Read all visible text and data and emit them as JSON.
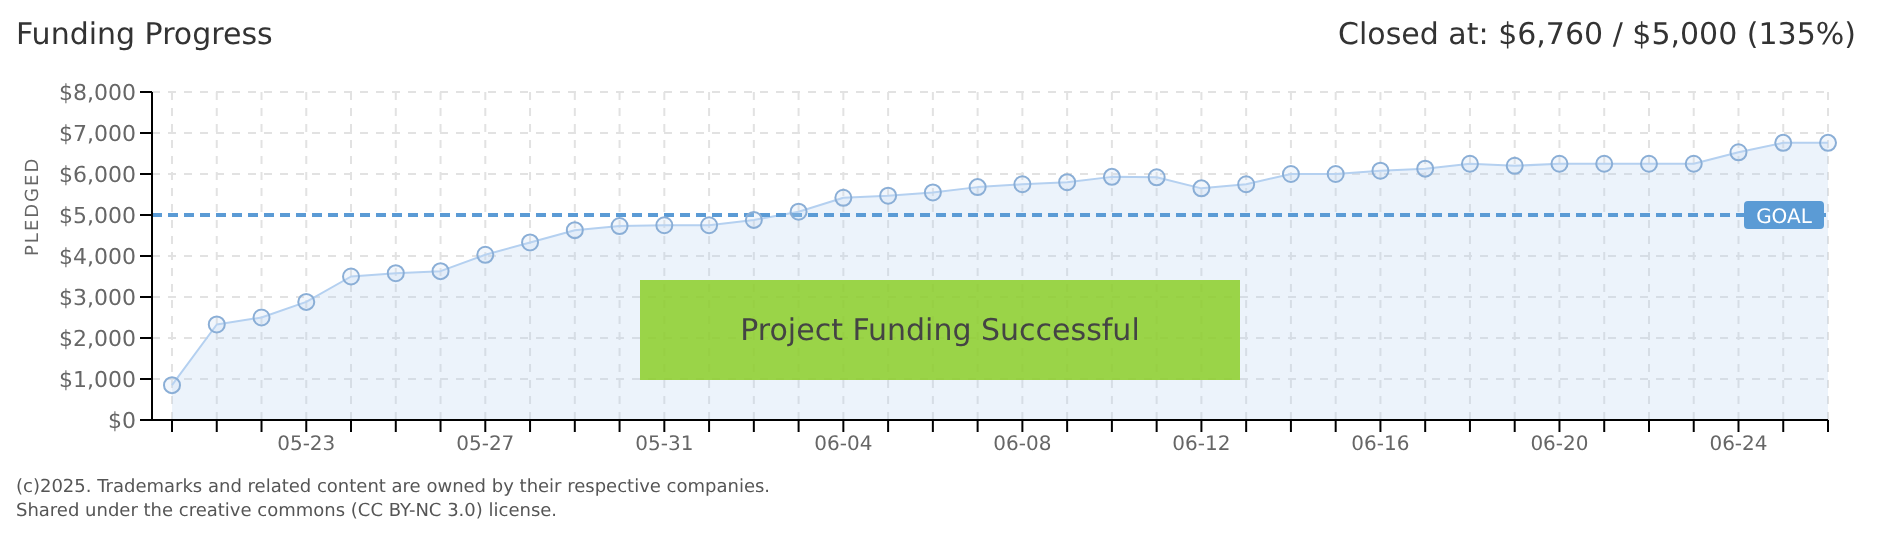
{
  "chart_data": {
    "type": "area",
    "title": "Funding Progress",
    "subtitle": "Closed at: $6,760 / $5,000 (135%)",
    "ylabel": "PLEDGED",
    "categories": [
      null,
      null,
      null,
      "05-23",
      null,
      null,
      null,
      "05-27",
      null,
      null,
      null,
      "05-31",
      null,
      null,
      null,
      "06-04",
      null,
      null,
      null,
      "06-08",
      null,
      null,
      null,
      "06-12",
      null,
      null,
      null,
      "06-16",
      null,
      null,
      null,
      "06-20",
      null,
      null,
      null,
      "06-24",
      null,
      null
    ],
    "series": [
      {
        "color": "#b4d0f0",
        "values": [
          850,
          2330,
          2500,
          2880,
          3500,
          3580,
          3630,
          4030,
          4330,
          4630,
          4730,
          4750,
          4750,
          4880,
          5080,
          5420,
          5470,
          5550,
          5680,
          5750,
          5800,
          5930,
          5920,
          5650,
          5750,
          6000,
          6000,
          6080,
          6130,
          6250,
          6200,
          6250,
          6250,
          6250,
          6250,
          6530,
          6760,
          6760
        ]
      }
    ],
    "ylim": [
      0,
      8000
    ],
    "yticks": [
      {
        "value": 0,
        "label": "$0"
      },
      {
        "value": 1000,
        "label": "$1,000"
      },
      {
        "value": 2000,
        "label": "$2,000"
      },
      {
        "value": 3000,
        "label": "$3,000"
      },
      {
        "value": 4000,
        "label": "$4,000"
      },
      {
        "value": 5000,
        "label": "$5,000"
      },
      {
        "value": 6000,
        "label": "$6,000"
      },
      {
        "value": 7000,
        "label": "$7,000"
      },
      {
        "value": 8000,
        "label": "$8,000"
      }
    ],
    "ref_lines": [
      {
        "axis": "y",
        "value": 5000,
        "label": "GOAL",
        "color": "#5b9bd5",
        "line_style": "dashed"
      }
    ],
    "annotations": [
      "Project Funding Successful",
      "(c)2025. Trademarks and related content are owned by their respective companies.",
      "Shared under the creative commons (CC BY-NC 3.0) license."
    ],
    "grid": true,
    "marker": "circle"
  }
}
